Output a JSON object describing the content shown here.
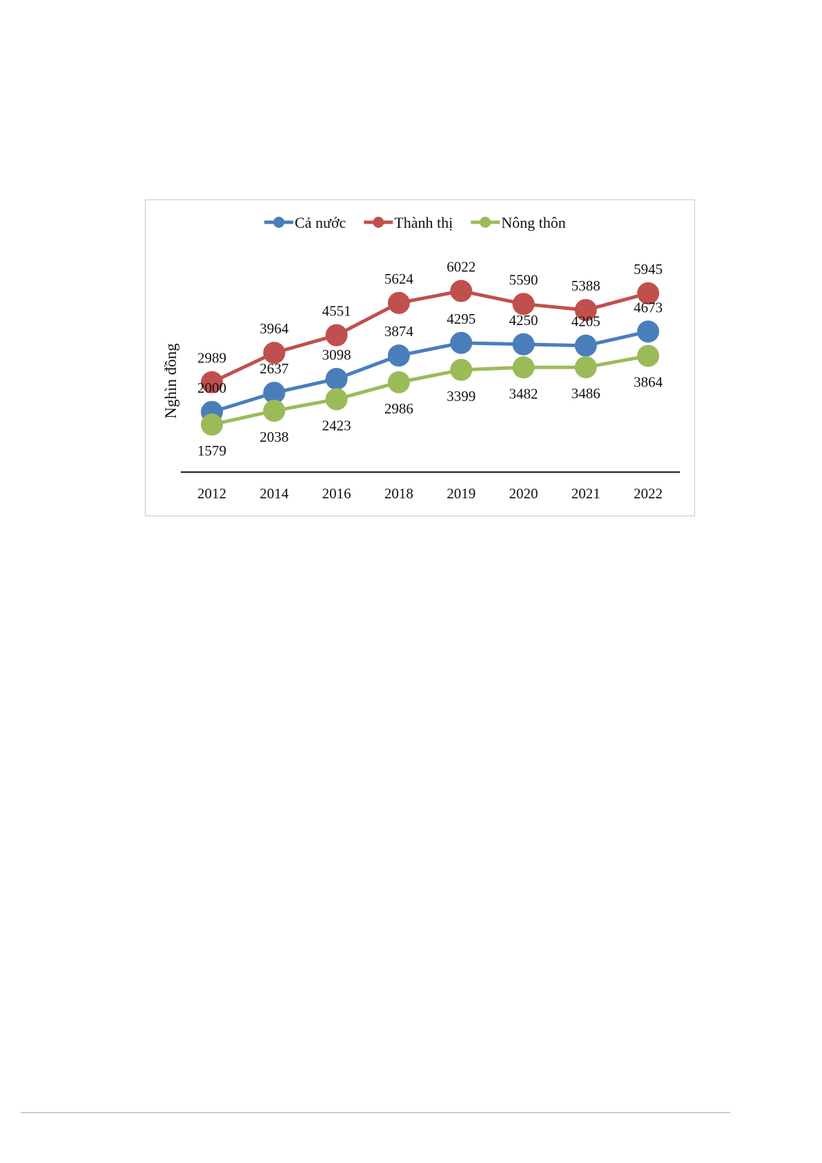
{
  "chart_data": {
    "type": "line",
    "title": "",
    "xlabel": "",
    "ylabel": "Nghìn đồng",
    "categories": [
      "2012",
      "2014",
      "2016",
      "2018",
      "2019",
      "2020",
      "2021",
      "2022"
    ],
    "ylim": [
      0,
      6800
    ],
    "grid": false,
    "legend_position": "top",
    "series": [
      {
        "name": "Cả nước",
        "color": "#4a7ebb",
        "values": [
          2000,
          2637,
          3098,
          3874,
          4295,
          4250,
          4205,
          4673
        ],
        "label_side": "above"
      },
      {
        "name": "Thành thị",
        "color": "#c0504d",
        "values": [
          2989,
          3964,
          4551,
          5624,
          6022,
          5590,
          5388,
          5945
        ],
        "label_side": "above"
      },
      {
        "name": "Nông thôn",
        "color": "#9bbb59",
        "values": [
          1579,
          2038,
          2423,
          2986,
          3399,
          3482,
          3486,
          3864
        ],
        "label_side": "below"
      }
    ]
  }
}
